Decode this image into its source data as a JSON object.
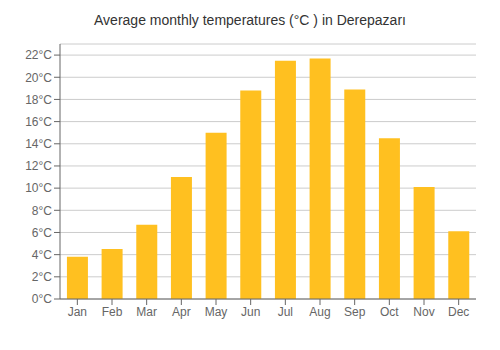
{
  "chart_data": {
    "type": "bar",
    "title": "Average monthly temperatures (°C ) in Derepazarı",
    "categories": [
      "Jan",
      "Feb",
      "Mar",
      "Apr",
      "May",
      "Jun",
      "Jul",
      "Aug",
      "Sep",
      "Oct",
      "Nov",
      "Dec"
    ],
    "values": [
      3.8,
      4.5,
      6.7,
      11.0,
      15.0,
      18.8,
      21.5,
      21.7,
      18.9,
      14.5,
      10.1,
      6.1
    ],
    "color": "#FFC020",
    "ylim": [
      0,
      23
    ],
    "yticks": [
      {
        "value": 0,
        "label": "0°C"
      },
      {
        "value": 2,
        "label": "2°C"
      },
      {
        "value": 4,
        "label": "4°C"
      },
      {
        "value": 6,
        "label": "6°C"
      },
      {
        "value": 8,
        "label": "8°C"
      },
      {
        "value": 10,
        "label": "10°C"
      },
      {
        "value": 12,
        "label": "12°C"
      },
      {
        "value": 14,
        "label": "14°C"
      },
      {
        "value": 16,
        "label": "16°C"
      },
      {
        "value": 18,
        "label": "18°C"
      },
      {
        "value": 20,
        "label": "20°C"
      },
      {
        "value": 22,
        "label": "22°C"
      }
    ],
    "grid": true
  }
}
